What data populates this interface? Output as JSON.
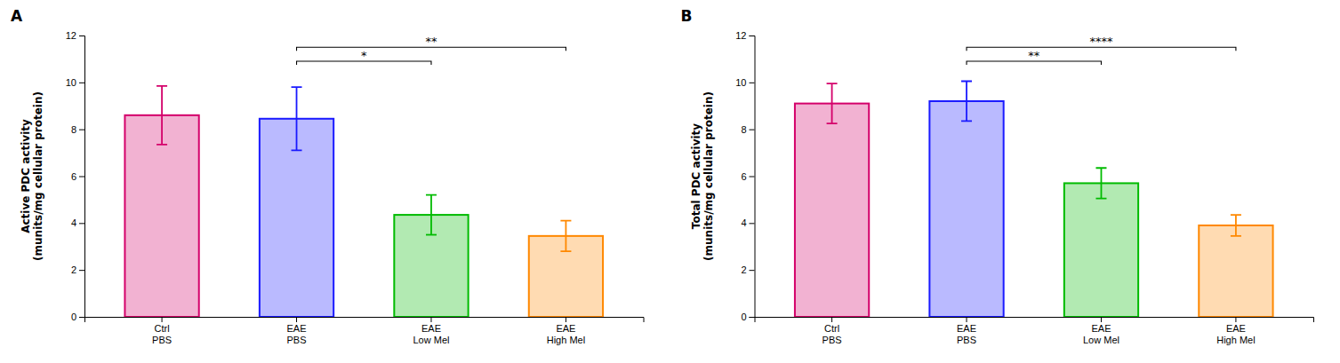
{
  "chart_data": [
    {
      "type": "bar",
      "title": "A",
      "ylabel": "Active PDC activity\n(munits/mg cellular protein)",
      "categories": [
        "Ctrl\nPBS",
        "EAE\nPBS",
        "EAE\nLow Mel",
        "EAE\nHigh Mel"
      ],
      "values": [
        8.6,
        8.45,
        4.35,
        3.45
      ],
      "errors": [
        1.25,
        1.35,
        0.85,
        0.65
      ],
      "colors": [
        "#d4006a",
        "#1a1aff",
        "#00bb00",
        "#ff8800"
      ],
      "ylim": [
        0,
        12
      ],
      "yticks": [
        0,
        2,
        4,
        6,
        8,
        10,
        12
      ],
      "grid": false,
      "annotations": [
        {
          "x1": 1,
          "x2": 2,
          "y": 10.9,
          "label": "*"
        },
        {
          "x1": 1,
          "x2": 3,
          "y": 11.5,
          "label": "**"
        }
      ]
    },
    {
      "type": "bar",
      "title": "B",
      "ylabel": "Total PDC activity\n(munits/mg cellular protein)",
      "categories": [
        "Ctrl\nPBS",
        "EAE\nPBS",
        "EAE\nLow Mel",
        "EAE\nHigh Mel"
      ],
      "values": [
        9.1,
        9.2,
        5.7,
        3.9
      ],
      "errors": [
        0.85,
        0.85,
        0.65,
        0.45
      ],
      "colors": [
        "#d4006a",
        "#1a1aff",
        "#00bb00",
        "#ff8800"
      ],
      "ylim": [
        0,
        12
      ],
      "yticks": [
        0,
        2,
        4,
        6,
        8,
        10,
        12
      ],
      "grid": false,
      "annotations": [
        {
          "x1": 1,
          "x2": 2,
          "y": 10.9,
          "label": "**"
        },
        {
          "x1": 1,
          "x2": 3,
          "y": 11.5,
          "label": "****"
        }
      ]
    }
  ]
}
